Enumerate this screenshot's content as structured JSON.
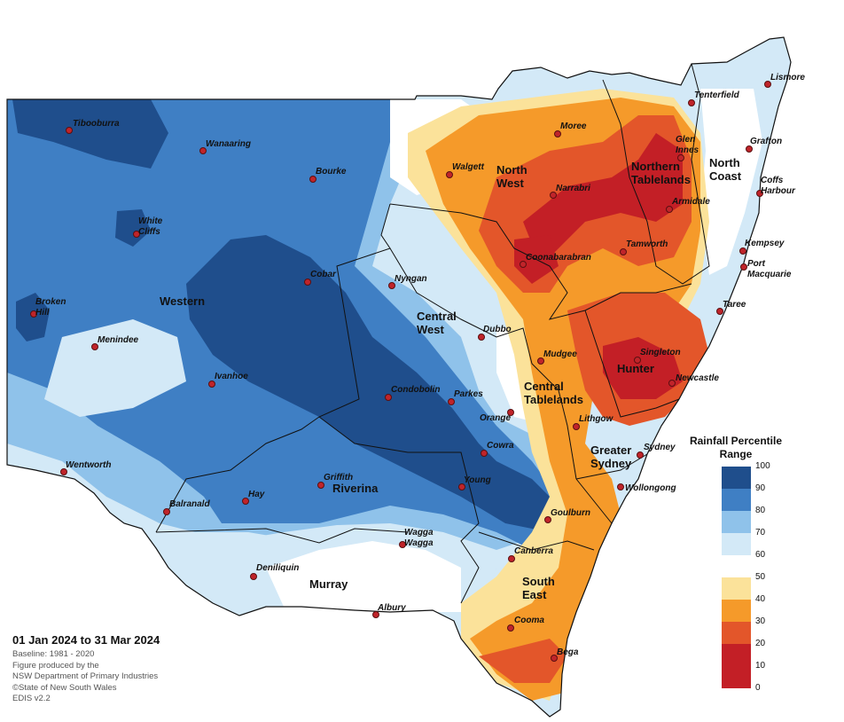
{
  "map": {
    "colors": {
      "p90_100": "#1f4e8c",
      "p80_90": "#3f7fc4",
      "p70_80": "#8fc2ea",
      "p60_70": "#d3e9f7",
      "p50_60": "#ffffff",
      "p40_50": "#fbe29a",
      "p30_40": "#f59a2a",
      "p20_30": "#e3562a",
      "p10_20": "#c31f26",
      "boundary": "#111111",
      "town": "#c0242a"
    }
  },
  "regions": [
    {
      "name": "Western"
    },
    {
      "name": "Central West"
    },
    {
      "name": "North West"
    },
    {
      "name": "Northern Tablelands"
    },
    {
      "name": "North Coast"
    },
    {
      "name": "Hunter"
    },
    {
      "name": "Central Tablelands"
    },
    {
      "name": "Greater Sydney"
    },
    {
      "name": "Riverina"
    },
    {
      "name": "Murray"
    },
    {
      "name": "South East"
    }
  ],
  "towns": [
    "Tibooburra",
    "Wanaaring",
    "Bourke",
    "White Cliffs",
    "Cobar",
    "Broken Hill",
    "Menindee",
    "Ivanhoe",
    "Wentworth",
    "Balranald",
    "Hay",
    "Griffith",
    "Deniliquin",
    "Wagga Wagga",
    "Albury",
    "Nyngan",
    "Dubbo",
    "Condobolin",
    "Parkes",
    "Orange",
    "Cowra",
    "Young",
    "Mudgee",
    "Lithgow",
    "Goulburn",
    "Canberra",
    "Cooma",
    "Bega",
    "Wollongong",
    "Sydney",
    "Newcastle",
    "Singleton",
    "Taree",
    "Port Macquarie",
    "Kempsey",
    "Coffs Harbour",
    "Grafton",
    "Lismore",
    "Tenterfield",
    "Glen Innes",
    "Armidale",
    "Tamworth",
    "Narrabri",
    "Coonabarabran",
    "Moree",
    "Walgett"
  ],
  "legend": {
    "title": "Rainfall Percentile Range",
    "ticks": [
      "100",
      "90",
      "80",
      "70",
      "60",
      "50",
      "40",
      "30",
      "20",
      "10",
      "0"
    ]
  },
  "footer": {
    "period": "01 Jan 2024 to 31 Mar 2024",
    "baseline": "Baseline: 1981 - 2020",
    "produced_by": "Figure produced by the",
    "department": "NSW Department of Primary Industries",
    "copyright": "©State of New South Wales",
    "version": "EDIS v2.2"
  }
}
